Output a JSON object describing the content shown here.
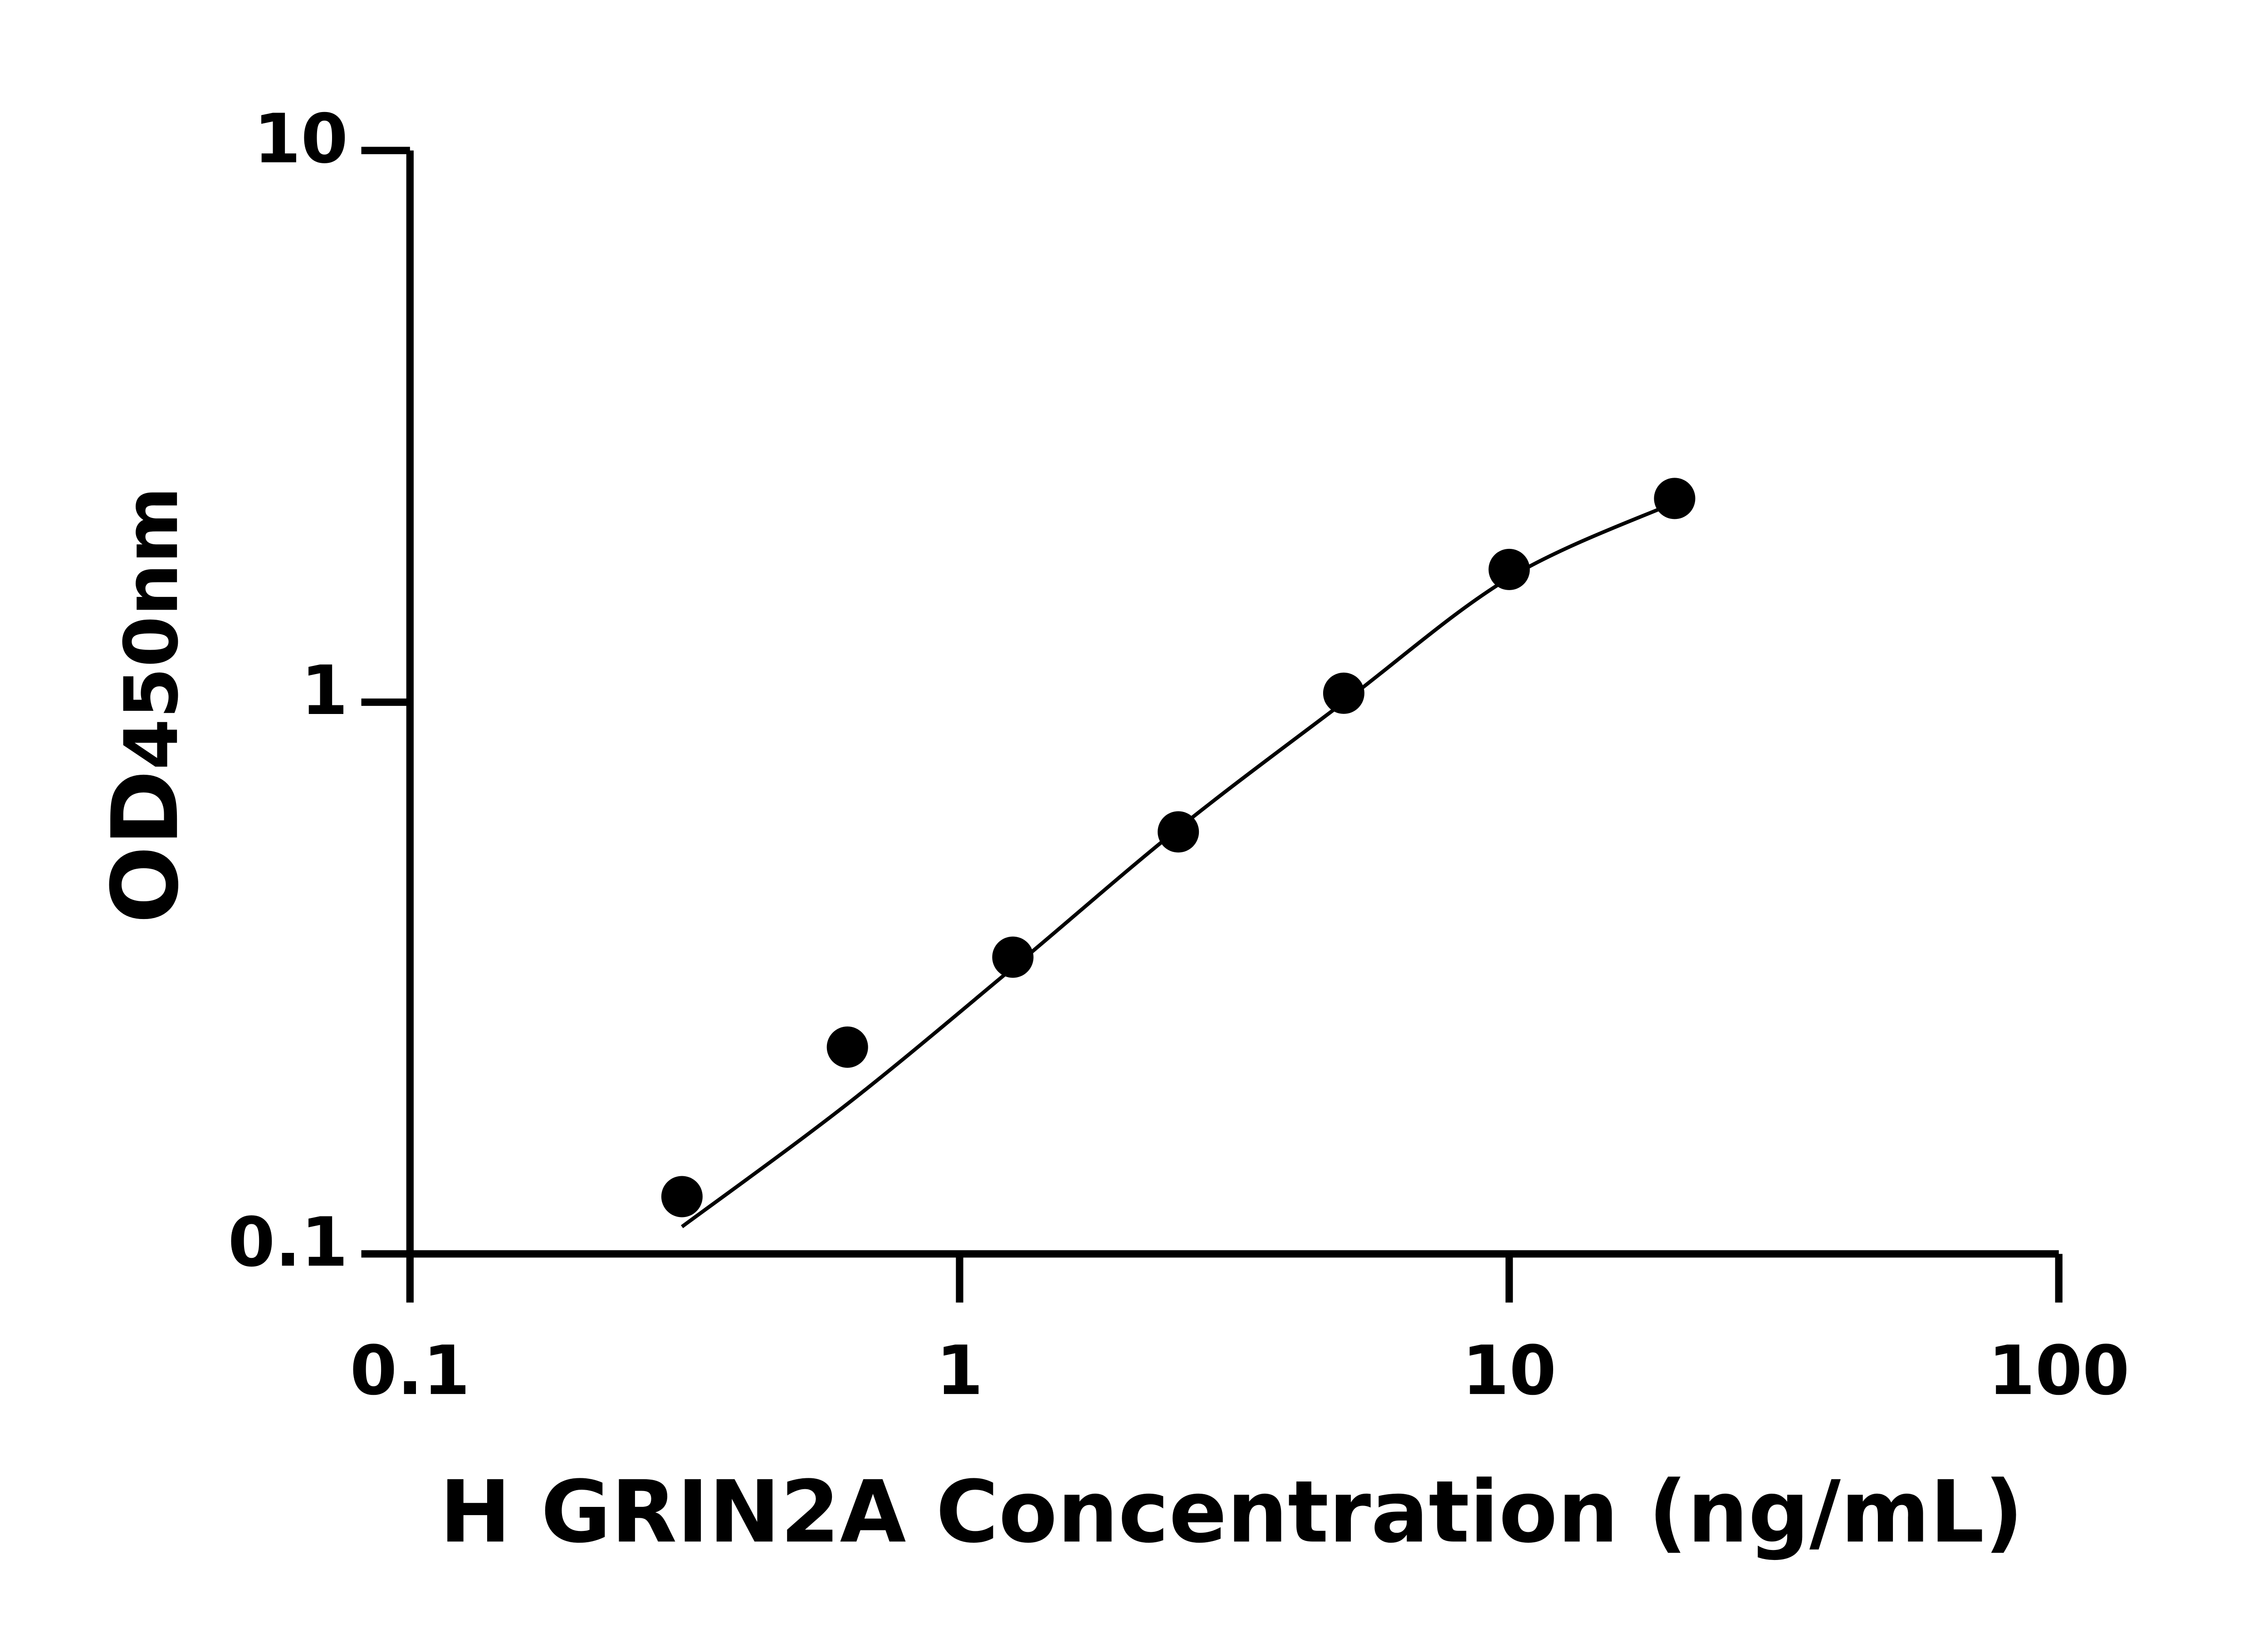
{
  "chart_data": {
    "type": "scatter",
    "title": "",
    "xlabel": "H GRIN2A Concentration (ng/mL)",
    "ylabel_main": "OD",
    "ylabel_sub": "450nm",
    "x_scale": "log",
    "y_scale": "log",
    "xlim": [
      0.1,
      100
    ],
    "ylim": [
      0.1,
      10
    ],
    "x_ticks": [
      0.1,
      1,
      10,
      100
    ],
    "x_tick_labels": [
      "0.1",
      "1",
      "10",
      "100"
    ],
    "y_ticks": [
      0.1,
      1,
      10
    ],
    "y_tick_labels": [
      "0.1",
      "1",
      "10"
    ],
    "grid": false,
    "points": {
      "x": [
        0.3125,
        0.625,
        1.25,
        2.5,
        5,
        10,
        20
      ],
      "y": [
        0.127,
        0.237,
        0.345,
        0.582,
        1.038,
        1.74,
        2.34
      ]
    },
    "fit_curve": {
      "x": [
        0.3125,
        0.625,
        1.25,
        2.5,
        5,
        10,
        20
      ],
      "y": [
        0.112,
        0.187,
        0.33,
        0.59,
        1.0,
        1.68,
        2.3
      ]
    },
    "colors": {
      "points": "#000000",
      "curve": "#000000",
      "axes": "#000000"
    }
  }
}
